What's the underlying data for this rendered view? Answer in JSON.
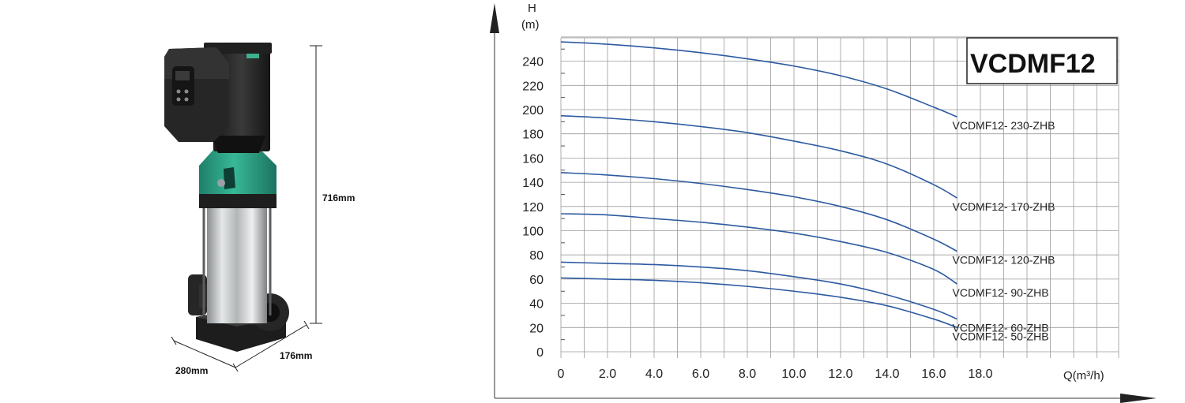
{
  "product": {
    "dims": {
      "height": "716mm",
      "width": "176mm",
      "depth": "280mm"
    },
    "colors": {
      "motor": "#2b2b2b",
      "adapter": "#2fa98c",
      "steel": "#c9ccce",
      "base": "#1d1d1d"
    }
  },
  "chart_data": {
    "type": "line",
    "title": "VCDMF12",
    "ylabel_line1": "H",
    "ylabel_line2": "(m)",
    "xlabel": "Q(m³/h)",
    "xlim": [
      0,
      24
    ],
    "ylim": [
      0,
      260
    ],
    "xticks": [
      "0",
      "2.0",
      "4.0",
      "6.0",
      "8.0",
      "10.0",
      "12.0",
      "14.0",
      "16.0",
      "18.0"
    ],
    "xtick_values": [
      0,
      2,
      4,
      6,
      8,
      10,
      12,
      14,
      16,
      18
    ],
    "yticks": [
      "0",
      "20",
      "40",
      "60",
      "80",
      "100",
      "120",
      "140",
      "160",
      "180",
      "200",
      "220",
      "240"
    ],
    "ytick_values": [
      0,
      20,
      40,
      60,
      80,
      100,
      120,
      140,
      160,
      180,
      200,
      220,
      240
    ],
    "line_color": "#2d5aa0",
    "series": [
      {
        "name": "VCDMF12- 230-ZHB",
        "x": [
          0,
          2,
          4,
          6,
          8,
          10,
          12,
          14,
          16,
          17
        ],
        "y": [
          256,
          254,
          251,
          247,
          242,
          236,
          228,
          217,
          202,
          194
        ]
      },
      {
        "name": "VCDMF12- 170-ZHB",
        "x": [
          0,
          2,
          4,
          6,
          8,
          10,
          12,
          14,
          16,
          17
        ],
        "y": [
          195,
          193,
          190,
          186,
          181,
          174,
          166,
          155,
          138,
          127
        ]
      },
      {
        "name": "VCDMF12- 120-ZHB",
        "x": [
          0,
          2,
          4,
          6,
          8,
          10,
          12,
          14,
          16,
          17
        ],
        "y": [
          148,
          146,
          143,
          139,
          134,
          128,
          120,
          109,
          93,
          83
        ]
      },
      {
        "name": "VCDMF12- 90-ZHB",
        "x": [
          0,
          2,
          4,
          6,
          8,
          10,
          12,
          14,
          16,
          17
        ],
        "y": [
          114,
          113,
          110,
          107,
          103,
          98,
          91,
          82,
          68,
          56
        ]
      },
      {
        "name": "VCDMF12- 60-ZHB",
        "x": [
          0,
          2,
          4,
          6,
          8,
          10,
          12,
          14,
          16,
          17
        ],
        "y": [
          74,
          73,
          72,
          70,
          67,
          62,
          56,
          47,
          35,
          27
        ]
      },
      {
        "name": "VCDMF12- 50-ZHB",
        "x": [
          0,
          2,
          4,
          6,
          8,
          10,
          12,
          14,
          16,
          17
        ],
        "y": [
          61,
          60,
          59,
          57,
          54,
          50,
          45,
          38,
          27,
          20
        ]
      }
    ]
  }
}
